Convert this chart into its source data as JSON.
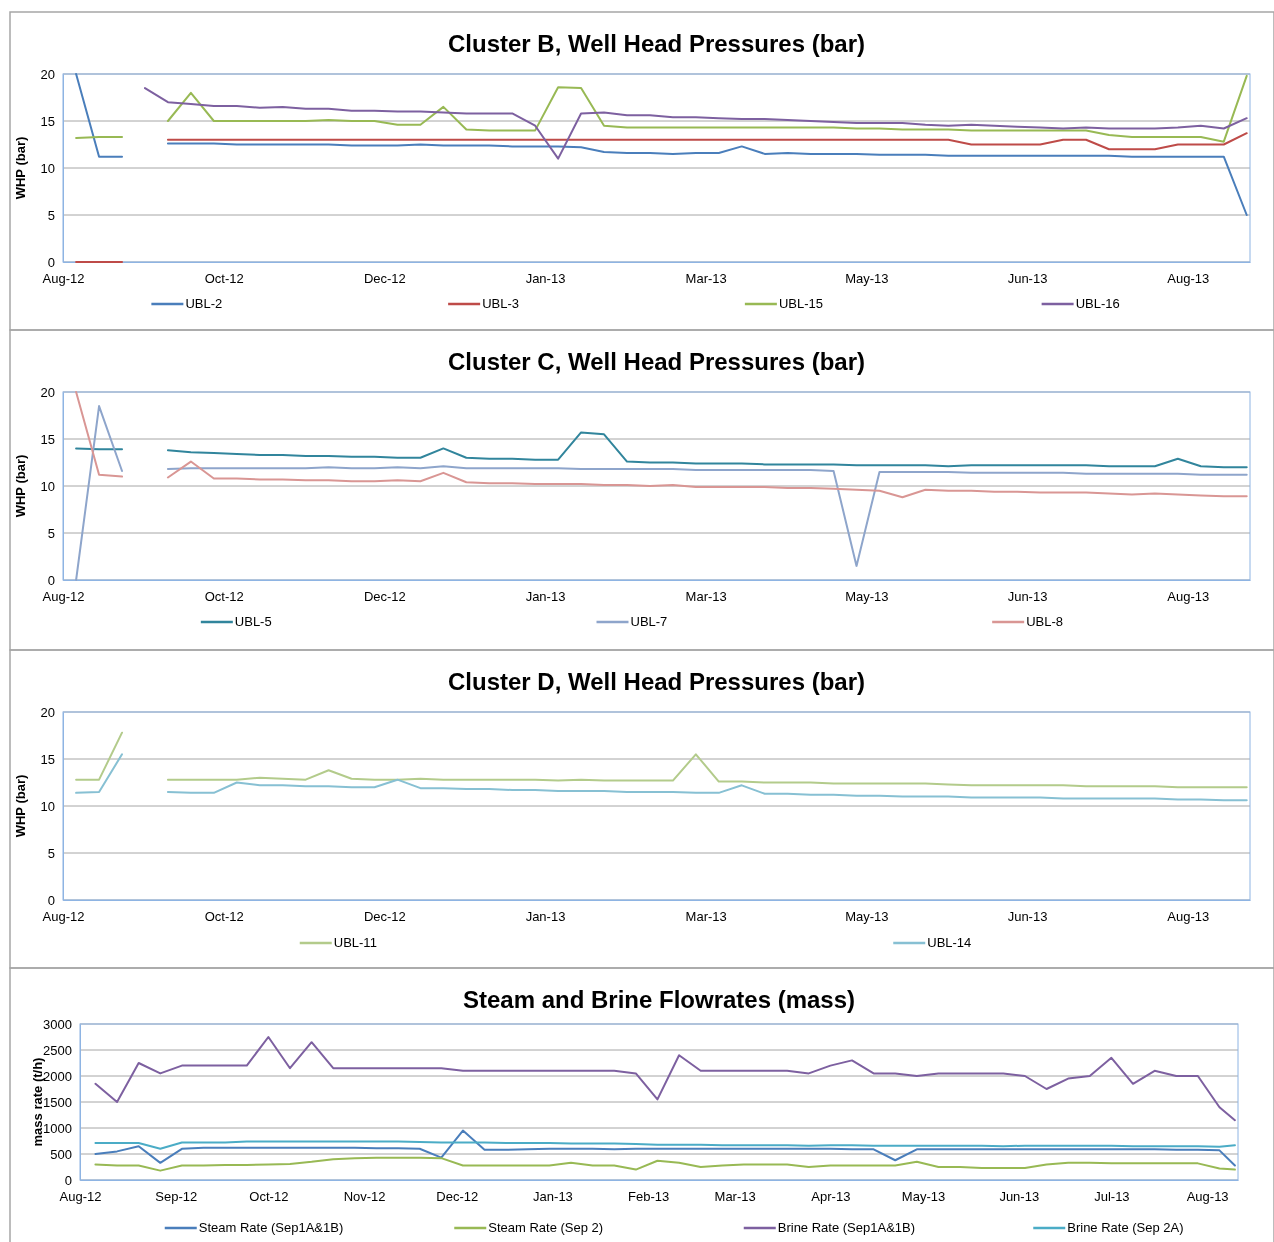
{
  "chart_data": [
    {
      "type": "line",
      "title": "Cluster B, Well Head Pressures (bar)",
      "ylabel": "WHP (bar)",
      "grid": "y",
      "legend": "bottom",
      "x": [
        "2012-09-03",
        "2012-09-10",
        "2012-09-17",
        "2012-09-24",
        "2012-10-01",
        "2012-10-08",
        "2012-10-15",
        "2012-10-22",
        "2012-10-29",
        "2012-11-05",
        "2012-11-12",
        "2012-11-19",
        "2012-11-26",
        "2012-12-03",
        "2012-12-10",
        "2012-12-17",
        "2012-12-24",
        "2012-12-31",
        "2013-01-07",
        "2013-01-14",
        "2013-01-21",
        "2013-01-28",
        "2013-02-04",
        "2013-02-11",
        "2013-02-18",
        "2013-02-25",
        "2013-03-04",
        "2013-03-11",
        "2013-03-18",
        "2013-03-25",
        "2013-04-01",
        "2013-04-08",
        "2013-04-15",
        "2013-04-22",
        "2013-04-29",
        "2013-05-06",
        "2013-05-13",
        "2013-05-20",
        "2013-05-27",
        "2013-06-03",
        "2013-06-10",
        "2013-06-17",
        "2013-06-24",
        "2013-07-01",
        "2013-07-08",
        "2013-07-15",
        "2013-07-22",
        "2013-07-29",
        "2013-08-05",
        "2013-08-12",
        "2013-08-19",
        "2013-08-26"
      ],
      "xlim": [
        "2012-08-30",
        "2013-08-27"
      ],
      "xticks": [
        {
          "value": "2012-08-30",
          "label": "Aug-12"
        },
        {
          "value": "2012-10-18",
          "label": "Oct-12"
        },
        {
          "value": "2012-12-06",
          "label": "Dec-12"
        },
        {
          "value": "2013-01-24",
          "label": "Jan-13"
        },
        {
          "value": "2013-03-14",
          "label": "Mar-13"
        },
        {
          "value": "2013-05-02",
          "label": "May-13"
        },
        {
          "value": "2013-06-20",
          "label": "Jun-13"
        },
        {
          "value": "2013-08-08",
          "label": "Aug-13"
        }
      ],
      "ylim": [
        0,
        20
      ],
      "yticks": [
        0,
        5,
        10,
        15,
        20
      ],
      "series": [
        {
          "name": "UBL-2",
          "color": "#4a7ebb",
          "values": [
            20,
            11.2,
            11.2,
            null,
            12.6,
            12.6,
            12.6,
            12.5,
            12.5,
            12.5,
            12.5,
            12.5,
            12.4,
            12.4,
            12.4,
            12.5,
            12.4,
            12.4,
            12.4,
            12.3,
            12.3,
            12.3,
            12.2,
            11.7,
            11.6,
            11.6,
            11.5,
            11.6,
            11.6,
            12.3,
            11.5,
            11.6,
            11.5,
            11.5,
            11.5,
            11.4,
            11.4,
            11.4,
            11.3,
            11.3,
            11.3,
            11.3,
            11.3,
            11.3,
            11.3,
            11.3,
            11.2,
            11.2,
            11.2,
            11.2,
            11.2,
            5
          ]
        },
        {
          "name": "UBL-3",
          "color": "#be4b48",
          "values": [
            0,
            0,
            0,
            null,
            13,
            13,
            13,
            13,
            13,
            13,
            13,
            13,
            13,
            13,
            13,
            13,
            13,
            13,
            13,
            13,
            13,
            13,
            13,
            13,
            13,
            13,
            13,
            13,
            13,
            13,
            13,
            13,
            13,
            13,
            13,
            13,
            13,
            13,
            13,
            12.5,
            12.5,
            12.5,
            12.5,
            13,
            13,
            12,
            12,
            12,
            12.5,
            12.5,
            12.5,
            13.7
          ]
        },
        {
          "name": "UBL-15",
          "color": "#98b954",
          "values": [
            13.2,
            13.3,
            13.3,
            null,
            15,
            18,
            15,
            15,
            15,
            15,
            15,
            15.1,
            15,
            15,
            14.6,
            14.6,
            16.5,
            14.1,
            14,
            14,
            14,
            18.6,
            18.5,
            14.5,
            14.3,
            14.3,
            14.3,
            14.3,
            14.3,
            14.3,
            14.3,
            14.3,
            14.3,
            14.3,
            14.2,
            14.2,
            14.1,
            14.1,
            14.1,
            14,
            14,
            14,
            14,
            14,
            14,
            13.5,
            13.3,
            13.3,
            13.3,
            13.3,
            12.8,
            19.8
          ]
        },
        {
          "name": "UBL-16",
          "color": "#7d60a0",
          "values": [
            null,
            null,
            null,
            18.5,
            17,
            16.8,
            16.6,
            16.6,
            16.4,
            16.5,
            16.3,
            16.3,
            16.1,
            16.1,
            16,
            16,
            15.9,
            15.8,
            15.8,
            15.8,
            14.5,
            11,
            15.8,
            15.9,
            15.6,
            15.6,
            15.4,
            15.4,
            15.3,
            15.2,
            15.2,
            15.1,
            15,
            14.9,
            14.8,
            14.8,
            14.8,
            14.6,
            14.5,
            14.6,
            14.5,
            14.4,
            14.3,
            14.2,
            14.3,
            14.2,
            14.2,
            14.2,
            14.3,
            14.5,
            14.2,
            15.3
          ]
        }
      ]
    },
    {
      "type": "line",
      "title": "Cluster C, Well Head Pressures (bar)",
      "ylabel": "WHP (bar)",
      "grid": "y",
      "legend": "bottom",
      "x": [
        "2012-09-03",
        "2012-09-10",
        "2012-09-17",
        "2012-09-24",
        "2012-10-01",
        "2012-10-08",
        "2012-10-15",
        "2012-10-22",
        "2012-10-29",
        "2012-11-05",
        "2012-11-12",
        "2012-11-19",
        "2012-11-26",
        "2012-12-03",
        "2012-12-10",
        "2012-12-17",
        "2012-12-24",
        "2012-12-31",
        "2013-01-07",
        "2013-01-14",
        "2013-01-21",
        "2013-01-28",
        "2013-02-04",
        "2013-02-11",
        "2013-02-18",
        "2013-02-25",
        "2013-03-04",
        "2013-03-11",
        "2013-03-18",
        "2013-03-25",
        "2013-04-01",
        "2013-04-08",
        "2013-04-15",
        "2013-04-22",
        "2013-04-29",
        "2013-05-06",
        "2013-05-13",
        "2013-05-20",
        "2013-05-27",
        "2013-06-03",
        "2013-06-10",
        "2013-06-17",
        "2013-06-24",
        "2013-07-01",
        "2013-07-08",
        "2013-07-15",
        "2013-07-22",
        "2013-07-29",
        "2013-08-05",
        "2013-08-12",
        "2013-08-19",
        "2013-08-26"
      ],
      "xlim": [
        "2012-08-30",
        "2013-08-27"
      ],
      "xticks": [
        {
          "value": "2012-08-30",
          "label": "Aug-12"
        },
        {
          "value": "2012-10-18",
          "label": "Oct-12"
        },
        {
          "value": "2012-12-06",
          "label": "Dec-12"
        },
        {
          "value": "2013-01-24",
          "label": "Jan-13"
        },
        {
          "value": "2013-03-14",
          "label": "Mar-13"
        },
        {
          "value": "2013-05-02",
          "label": "May-13"
        },
        {
          "value": "2013-06-20",
          "label": "Jun-13"
        },
        {
          "value": "2013-08-08",
          "label": "Aug-13"
        }
      ],
      "ylim": [
        0,
        20
      ],
      "yticks": [
        0,
        5,
        10,
        15,
        20
      ],
      "series": [
        {
          "name": "UBL-5",
          "color": "#31859c",
          "values": [
            14,
            13.9,
            13.9,
            null,
            13.8,
            13.6,
            13.5,
            13.4,
            13.3,
            13.3,
            13.2,
            13.2,
            13.1,
            13.1,
            13,
            13,
            14,
            13,
            12.9,
            12.9,
            12.8,
            12.8,
            15.7,
            15.5,
            12.6,
            12.5,
            12.5,
            12.4,
            12.4,
            12.4,
            12.3,
            12.3,
            12.3,
            12.3,
            12.2,
            12.2,
            12.2,
            12.2,
            12.1,
            12.2,
            12.2,
            12.2,
            12.2,
            12.2,
            12.2,
            12.1,
            12.1,
            12.1,
            12.9,
            12.1,
            12,
            12
          ]
        },
        {
          "name": "UBL-7",
          "color": "#8ea5cb",
          "values": [
            0,
            18.5,
            11.6,
            null,
            11.8,
            11.9,
            11.9,
            11.9,
            11.9,
            11.9,
            11.9,
            12,
            11.9,
            11.9,
            12,
            11.9,
            12.1,
            11.9,
            11.9,
            11.9,
            11.9,
            11.9,
            11.8,
            11.8,
            11.8,
            11.8,
            11.8,
            11.7,
            11.7,
            11.7,
            11.7,
            11.7,
            11.7,
            11.6,
            1.5,
            11.5,
            11.5,
            11.5,
            11.5,
            11.4,
            11.4,
            11.4,
            11.4,
            11.4,
            11.3,
            11.3,
            11.3,
            11.3,
            11.3,
            11.2,
            11.2,
            11.2
          ]
        },
        {
          "name": "UBL-8",
          "color": "#d99694",
          "values": [
            20,
            11.2,
            11,
            null,
            10.9,
            12.6,
            10.8,
            10.8,
            10.7,
            10.7,
            10.6,
            10.6,
            10.5,
            10.5,
            10.6,
            10.5,
            11.4,
            10.4,
            10.3,
            10.3,
            10.2,
            10.2,
            10.2,
            10.1,
            10.1,
            10,
            10.1,
            9.9,
            9.9,
            9.9,
            9.9,
            9.8,
            9.8,
            9.7,
            9.6,
            9.5,
            8.8,
            9.6,
            9.5,
            9.5,
            9.4,
            9.4,
            9.3,
            9.3,
            9.3,
            9.2,
            9.1,
            9.2,
            9.1,
            9,
            8.9,
            8.9
          ]
        }
      ]
    },
    {
      "type": "line",
      "title": "Cluster D, Well Head Pressures (bar)",
      "ylabel": "WHP (bar)",
      "grid": "y",
      "legend": "bottom",
      "x": [
        "2012-09-03",
        "2012-09-10",
        "2012-09-17",
        "2012-09-24",
        "2012-10-01",
        "2012-10-08",
        "2012-10-15",
        "2012-10-22",
        "2012-10-29",
        "2012-11-05",
        "2012-11-12",
        "2012-11-19",
        "2012-11-26",
        "2012-12-03",
        "2012-12-10",
        "2012-12-17",
        "2012-12-24",
        "2012-12-31",
        "2013-01-07",
        "2013-01-14",
        "2013-01-21",
        "2013-01-28",
        "2013-02-04",
        "2013-02-11",
        "2013-02-18",
        "2013-02-25",
        "2013-03-04",
        "2013-03-11",
        "2013-03-18",
        "2013-03-25",
        "2013-04-01",
        "2013-04-08",
        "2013-04-15",
        "2013-04-22",
        "2013-04-29",
        "2013-05-06",
        "2013-05-13",
        "2013-05-20",
        "2013-05-27",
        "2013-06-03",
        "2013-06-10",
        "2013-06-17",
        "2013-06-24",
        "2013-07-01",
        "2013-07-08",
        "2013-07-15",
        "2013-07-22",
        "2013-07-29",
        "2013-08-05",
        "2013-08-12",
        "2013-08-19",
        "2013-08-26"
      ],
      "xlim": [
        "2012-08-30",
        "2013-08-27"
      ],
      "xticks": [
        {
          "value": "2012-08-30",
          "label": "Aug-12"
        },
        {
          "value": "2012-10-18",
          "label": "Oct-12"
        },
        {
          "value": "2012-12-06",
          "label": "Dec-12"
        },
        {
          "value": "2013-01-24",
          "label": "Jan-13"
        },
        {
          "value": "2013-03-14",
          "label": "Mar-13"
        },
        {
          "value": "2013-05-02",
          "label": "May-13"
        },
        {
          "value": "2013-06-20",
          "label": "Jun-13"
        },
        {
          "value": "2013-08-08",
          "label": "Aug-13"
        }
      ],
      "ylim": [
        0,
        20
      ],
      "yticks": [
        0,
        5,
        10,
        15,
        20
      ],
      "series": [
        {
          "name": "UBL-11",
          "color": "#b3cb8b",
          "values": [
            12.8,
            12.8,
            17.8,
            null,
            12.8,
            12.8,
            12.8,
            12.8,
            13,
            12.9,
            12.8,
            13.8,
            12.9,
            12.8,
            12.8,
            12.9,
            12.8,
            12.8,
            12.8,
            12.8,
            12.8,
            12.7,
            12.8,
            12.7,
            12.7,
            12.7,
            12.7,
            15.5,
            12.6,
            12.6,
            12.5,
            12.5,
            12.5,
            12.4,
            12.4,
            12.4,
            12.4,
            12.4,
            12.3,
            12.2,
            12.2,
            12.2,
            12.2,
            12.2,
            12.1,
            12.1,
            12.1,
            12.1,
            12,
            12,
            12,
            12
          ]
        },
        {
          "name": "UBL-14",
          "color": "#87c0d3",
          "values": [
            11.4,
            11.5,
            15.5,
            null,
            11.5,
            11.4,
            11.4,
            12.5,
            12.2,
            12.2,
            12.1,
            12.1,
            12,
            12,
            12.8,
            11.9,
            11.9,
            11.8,
            11.8,
            11.7,
            11.7,
            11.6,
            11.6,
            11.6,
            11.5,
            11.5,
            11.5,
            11.4,
            11.4,
            12.2,
            11.3,
            11.3,
            11.2,
            11.2,
            11.1,
            11.1,
            11,
            11,
            11,
            10.9,
            10.9,
            10.9,
            10.9,
            10.8,
            10.8,
            10.8,
            10.8,
            10.8,
            10.7,
            10.7,
            10.6,
            10.6
          ]
        }
      ]
    },
    {
      "type": "line",
      "title": "Steam and Brine Flowrates (mass)",
      "ylabel": "mass rate (t/h)",
      "grid": "y",
      "legend": "bottom",
      "x": [
        "2012-08-06",
        "2012-08-13",
        "2012-08-20",
        "2012-08-27",
        "2012-09-03",
        "2012-09-10",
        "2012-09-17",
        "2012-09-24",
        "2012-10-01",
        "2012-10-08",
        "2012-10-15",
        "2012-10-22",
        "2012-10-29",
        "2012-11-05",
        "2012-11-12",
        "2012-11-19",
        "2012-11-26",
        "2012-12-03",
        "2012-12-10",
        "2012-12-17",
        "2012-12-24",
        "2012-12-31",
        "2013-01-07",
        "2013-01-14",
        "2013-01-21",
        "2013-01-28",
        "2013-02-04",
        "2013-02-11",
        "2013-02-18",
        "2013-02-25",
        "2013-03-04",
        "2013-03-11",
        "2013-03-18",
        "2013-03-25",
        "2013-04-01",
        "2013-04-08",
        "2013-04-15",
        "2013-04-22",
        "2013-04-29",
        "2013-05-06",
        "2013-05-13",
        "2013-05-20",
        "2013-05-27",
        "2013-06-03",
        "2013-06-10",
        "2013-06-17",
        "2013-06-24",
        "2013-07-01",
        "2013-07-08",
        "2013-07-15",
        "2013-07-22",
        "2013-07-29",
        "2013-08-05",
        "2013-08-10"
      ],
      "xlim": [
        "2012-08-01",
        "2013-08-11"
      ],
      "xticks": [
        {
          "value": "2012-08-01",
          "label": "Aug-12"
        },
        {
          "value": "2012-09-01",
          "label": "Sep-12"
        },
        {
          "value": "2012-10-01",
          "label": "Oct-12"
        },
        {
          "value": "2012-11-01",
          "label": "Nov-12"
        },
        {
          "value": "2012-12-01",
          "label": "Dec-12"
        },
        {
          "value": "2013-01-01",
          "label": "Jan-13"
        },
        {
          "value": "2013-02-01",
          "label": "Feb-13"
        },
        {
          "value": "2013-03-01",
          "label": "Mar-13"
        },
        {
          "value": "2013-04-01",
          "label": "Apr-13"
        },
        {
          "value": "2013-05-01",
          "label": "May-13"
        },
        {
          "value": "2013-06-01",
          "label": "Jun-13"
        },
        {
          "value": "2013-07-01",
          "label": "Jul-13"
        },
        {
          "value": "2013-08-01",
          "label": "Aug-13"
        }
      ],
      "ylim": [
        0,
        3000
      ],
      "yticks": [
        0,
        500,
        1000,
        1500,
        2000,
        2500,
        3000
      ],
      "series": [
        {
          "name": "Steam Rate (Sep1A&1B)",
          "color": "#4a7ebb",
          "values": [
            500,
            550,
            650,
            330,
            600,
            620,
            620,
            620,
            620,
            620,
            620,
            620,
            620,
            610,
            610,
            600,
            430,
            950,
            580,
            580,
            590,
            600,
            600,
            600,
            590,
            600,
            600,
            600,
            600,
            600,
            600,
            600,
            600,
            600,
            600,
            590,
            590,
            380,
            590,
            590,
            590,
            590,
            590,
            590,
            590,
            590,
            590,
            590,
            590,
            590,
            580,
            580,
            570,
            280
          ]
        },
        {
          "name": "Steam Rate (Sep 2)",
          "color": "#98b954",
          "values": [
            300,
            280,
            280,
            180,
            280,
            280,
            290,
            290,
            300,
            310,
            350,
            400,
            420,
            430,
            430,
            430,
            420,
            280,
            280,
            280,
            280,
            280,
            330,
            280,
            280,
            200,
            370,
            330,
            250,
            280,
            300,
            300,
            300,
            250,
            280,
            280,
            280,
            280,
            350,
            250,
            250,
            230,
            230,
            230,
            300,
            330,
            330,
            320,
            320,
            320,
            320,
            320,
            220,
            200
          ]
        },
        {
          "name": "Brine Rate (Sep1A&1B)",
          "color": "#7d60a0",
          "values": [
            1850,
            1500,
            2250,
            2050,
            2200,
            2200,
            2200,
            2200,
            2750,
            2150,
            2650,
            2150,
            2150,
            2150,
            2150,
            2150,
            2150,
            2100,
            2100,
            2100,
            2100,
            2100,
            2100,
            2100,
            2100,
            2050,
            1550,
            2400,
            2100,
            2100,
            2100,
            2100,
            2100,
            2050,
            2200,
            2300,
            2050,
            2050,
            2000,
            2050,
            2050,
            2050,
            2050,
            2000,
            1750,
            1950,
            2000,
            2350,
            1850,
            2100,
            2000,
            2000,
            1400,
            1150
          ]
        },
        {
          "name": "Brine Rate (Sep 2A)",
          "color": "#4bacc6",
          "values": [
            710,
            710,
            710,
            600,
            720,
            720,
            720,
            740,
            740,
            740,
            740,
            740,
            740,
            740,
            740,
            730,
            720,
            720,
            720,
            710,
            710,
            710,
            700,
            700,
            700,
            690,
            680,
            680,
            680,
            670,
            670,
            670,
            670,
            660,
            670,
            670,
            660,
            660,
            660,
            660,
            660,
            660,
            650,
            660,
            660,
            660,
            660,
            660,
            650,
            650,
            650,
            650,
            640,
            670
          ]
        }
      ]
    }
  ]
}
